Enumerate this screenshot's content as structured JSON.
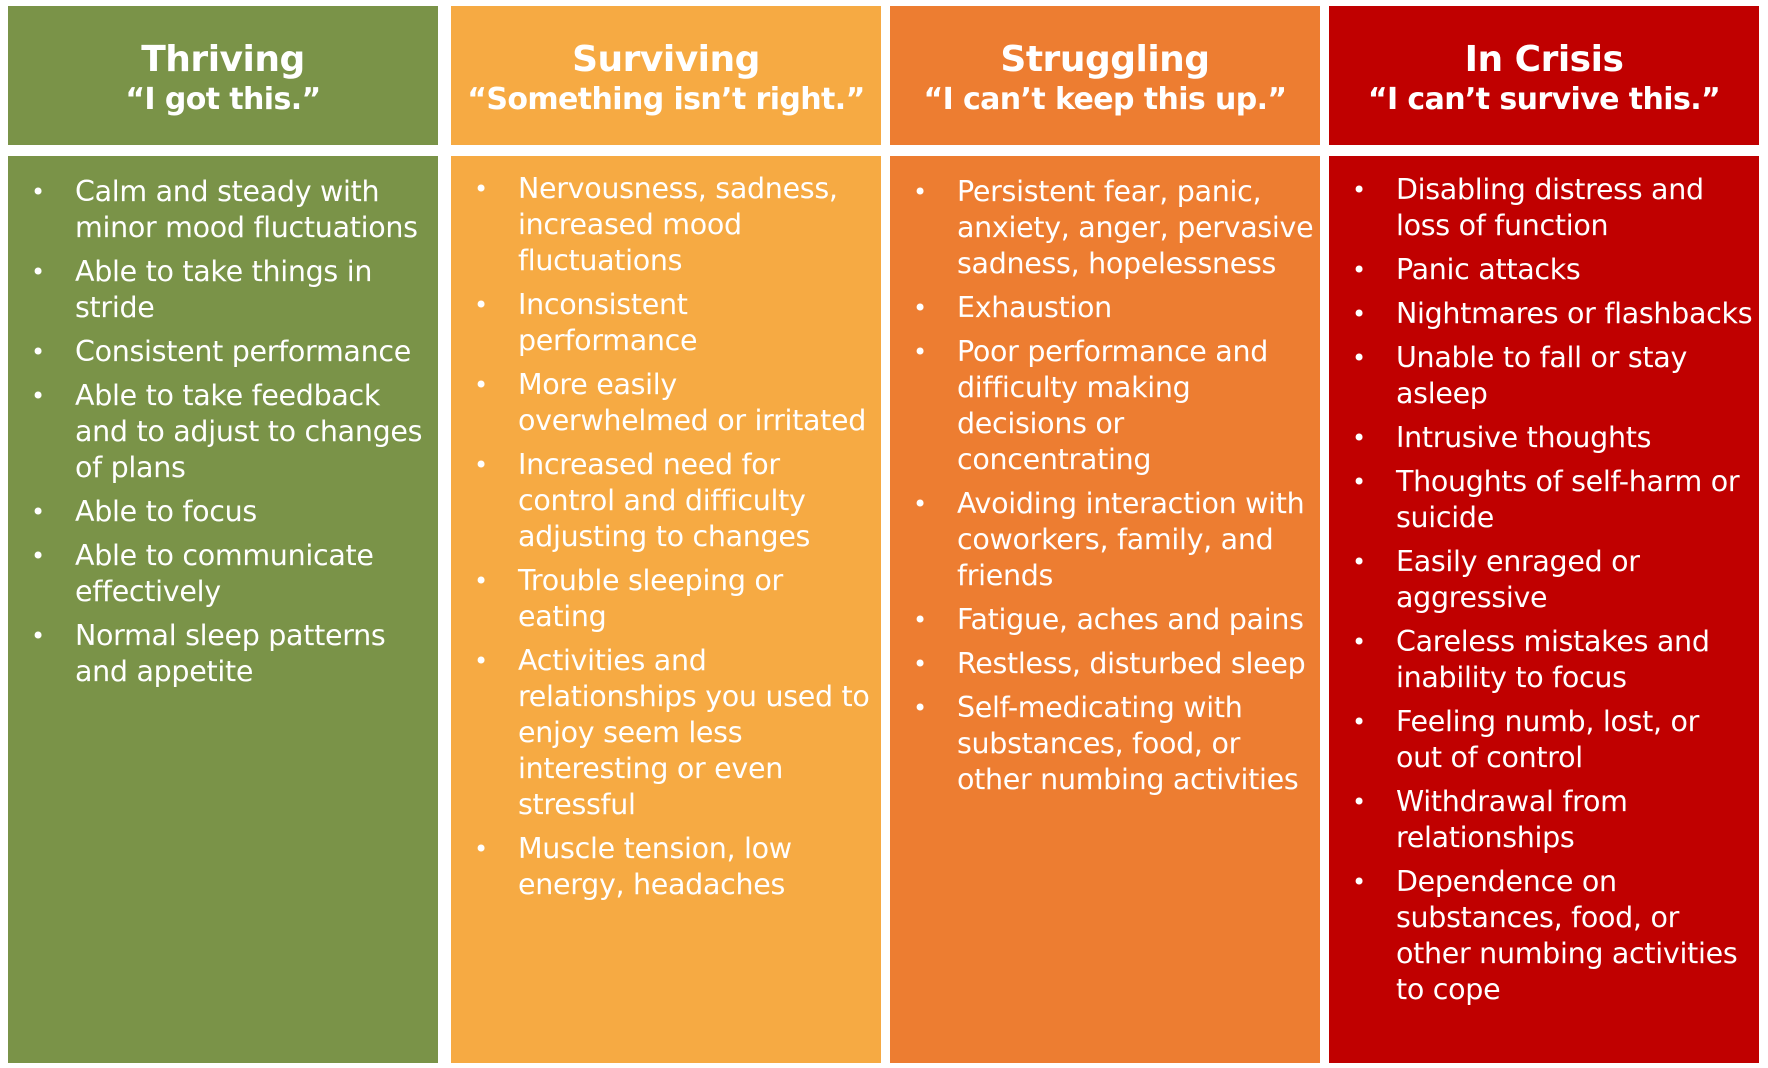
{
  "columns": [
    {
      "title": "Thriving",
      "quote": "“I got this.”",
      "color": "#7A9348",
      "items": [
        "Calm and steady with minor mood fluctuations",
        "Able to take things in stride",
        "Consistent performance",
        "Able to take feedback and to adjust to changes of plans",
        "Able to focus",
        "Able to communicate effectively",
        "Normal sleep patterns and appetite"
      ]
    },
    {
      "title": "Surviving",
      "quote": "“Something isn’t right.”",
      "color": "#F6AA43",
      "items": [
        "Nervousness, sadness, increased mood fluctuations",
        "Inconsistent performance",
        "More easily overwhelmed or irritated",
        "Increased need for control and difficulty adjusting to changes",
        "Trouble sleeping or eating",
        "Activities and relationships you used to enjoy seem less interesting or even stressful",
        "Muscle tension, low energy, headaches"
      ]
    },
    {
      "title": "Struggling",
      "quote": "“I can’t keep this up.”",
      "color": "#ED7D31",
      "items": [
        "Persistent fear, panic, anxiety, anger, pervasive sadness, hopelessness",
        "Exhaustion",
        "Poor performance and difficulty making decisions or concentrating",
        "Avoiding interaction with coworkers, family, and friends",
        "Fatigue, aches and pains",
        "Restless, disturbed sleep",
        "Self-medicating with substances, food, or other numbing activities"
      ]
    },
    {
      "title": "In Crisis",
      "quote": "“I can’t survive this.”",
      "color": "#C00000",
      "items": [
        "Disabling distress and loss of function",
        "Panic attacks",
        "Nightmares or flashbacks",
        "Unable to fall or stay asleep",
        "Intrusive thoughts",
        "Thoughts of self-harm or suicide",
        "Easily enraged or aggressive",
        "Careless mistakes and inability to focus",
        "Feeling numb, lost, or out of control",
        "Withdrawal from relationships",
        "Dependence on substances, food, or other numbing activities to cope"
      ]
    }
  ]
}
